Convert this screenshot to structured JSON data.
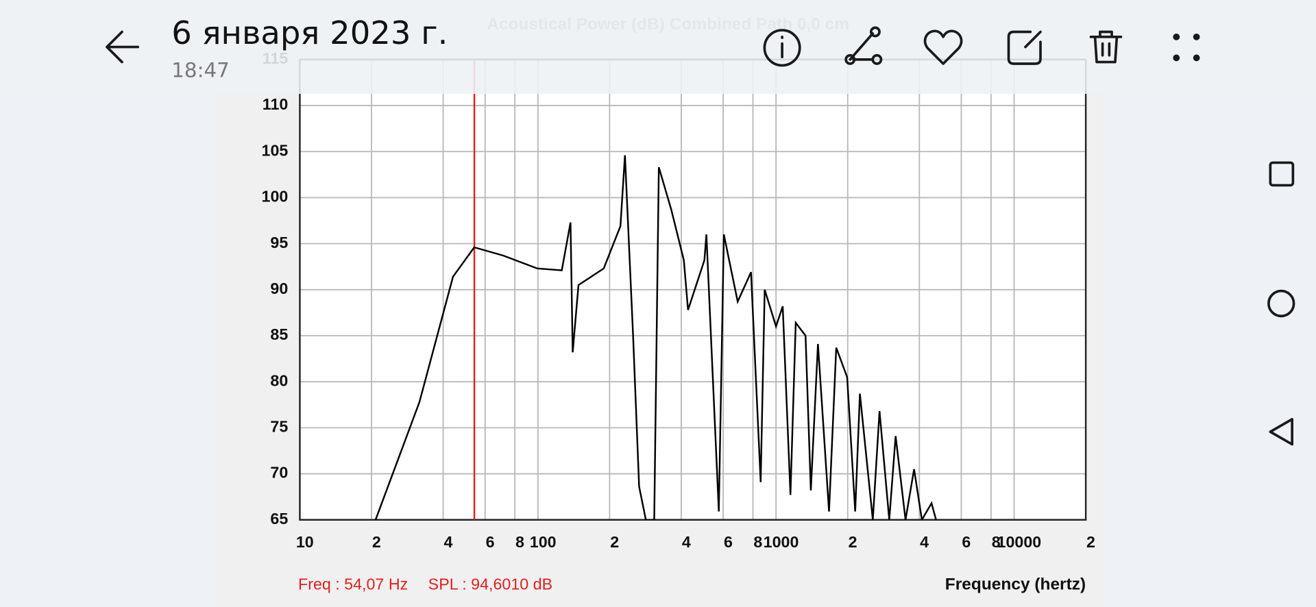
{
  "header": {
    "title": "6 января 2023 г.",
    "time": "18:47"
  },
  "chart_data": {
    "type": "line",
    "title": "Acoustical Power (dB)   Combined   Path 0,0 cm",
    "x_label": "Frequency (hertz)",
    "xscale": "log",
    "xlim": [
      10,
      20000
    ],
    "ylim": [
      65,
      115
    ],
    "xticks": [
      10,
      {
        "value": 20,
        "label": "2"
      },
      {
        "value": 40,
        "label": "4"
      },
      {
        "value": 60,
        "label": "6"
      },
      {
        "value": 80,
        "label": "8"
      },
      100,
      {
        "value": 200,
        "label": "2"
      },
      {
        "value": 400,
        "label": "4"
      },
      {
        "value": 600,
        "label": "6"
      },
      {
        "value": 800,
        "label": "8"
      },
      1000,
      {
        "value": 2000,
        "label": "2"
      },
      {
        "value": 4000,
        "label": "4"
      },
      {
        "value": 6000,
        "label": "6"
      },
      {
        "value": 8000,
        "label": "8"
      },
      10000,
      {
        "value": 20000,
        "label": "2"
      }
    ],
    "yticks": [
      65,
      70,
      75,
      80,
      85,
      90,
      95,
      100,
      105,
      110,
      115
    ],
    "grid": true,
    "series": [
      {
        "name": "Acoustical Power",
        "color": "#000000",
        "x": [
          20.8,
          31.8,
          44,
          54,
          71.6,
          99.3,
          126,
          137,
          140,
          148,
          189,
          222,
          232,
          251,
          266,
          284,
          308,
          322,
          363,
          410,
          427,
          500,
          510,
          575,
          604,
          690,
          785,
          862,
          896,
          1000,
          1067,
          1150,
          1210,
          1330,
          1400,
          1500,
          1670,
          1790,
          1990,
          2150,
          2250,
          2550,
          2720,
          2990,
          3180,
          3500,
          3800,
          4100,
          4500,
          4700
        ],
        "values": [
          65,
          77.8,
          91.4,
          94.6,
          93.7,
          92.3,
          92.1,
          97.3,
          83.2,
          90.5,
          92.3,
          96.9,
          104.6,
          85,
          68.6,
          65,
          65,
          103.3,
          98.7,
          93.2,
          87.8,
          93.2,
          96,
          65.9,
          96,
          88.7,
          91.9,
          69.1,
          90,
          86,
          88.2,
          67.7,
          86.4,
          85,
          68.2,
          84.1,
          65.9,
          83.7,
          80.5,
          65.9,
          78.7,
          65,
          76.8,
          65,
          74.1,
          65,
          70.5,
          65,
          66.8,
          65
        ]
      }
    ],
    "cursor": {
      "x": 54.07,
      "color": "#e02020",
      "freq_label": "Freq : 54,07 Hz",
      "spl_label": "SPL : 94,6010 dB"
    }
  }
}
